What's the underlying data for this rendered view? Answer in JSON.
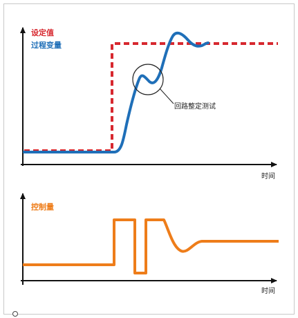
{
  "top_chart": {
    "legend_setpoint": "设定值",
    "legend_process": "过程变量",
    "annotation": "回路整定测试",
    "x_axis_label": "时间",
    "colors": {
      "setpoint": "#d7282f",
      "process": "#1f6fb8"
    }
  },
  "bottom_chart": {
    "legend_output": "控制量",
    "x_axis_label": "时间",
    "colors": {
      "output": "#ee7d1a"
    }
  }
}
